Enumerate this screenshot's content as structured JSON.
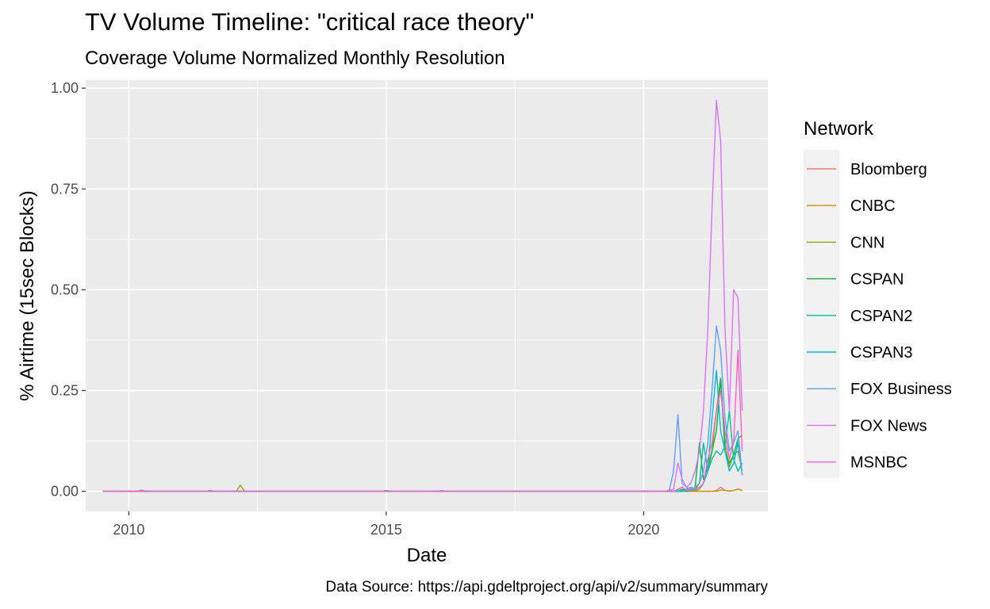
{
  "chart_data": {
    "type": "line",
    "title": "TV Volume Timeline: \"critical race theory\"",
    "subtitle": "Coverage Volume Normalized Monthly Resolution",
    "xlabel": "Date",
    "ylabel": "% Airtime (15sec Blocks)",
    "caption": "Data Source: https://api.gdeltproject.org/api/v2/summary/summary",
    "xlim": [
      "2009-03-01",
      "2022-06-01"
    ],
    "ylim": [
      -0.05,
      1.02
    ],
    "x_ticks": [
      "2010",
      "2015",
      "2020"
    ],
    "y_ticks": [
      "0.00",
      "0.25",
      "0.50",
      "0.75",
      "1.00"
    ],
    "grid": true,
    "legend_title": "Network",
    "legend_position": "right",
    "series": [
      {
        "name": "Bloomberg",
        "color": "#F8766D",
        "points": [
          [
            "2009-07-01",
            0
          ],
          [
            "2021-05-01",
            0
          ],
          [
            "2021-06-01",
            0.002
          ],
          [
            "2021-07-01",
            0.01
          ],
          [
            "2021-08-01",
            0.003
          ],
          [
            "2021-09-01",
            0.0
          ],
          [
            "2021-10-01",
            0.002
          ],
          [
            "2021-11-01",
            0.005
          ],
          [
            "2021-12-01",
            0.003
          ]
        ]
      },
      {
        "name": "CNBC",
        "color": "#D39200",
        "points": [
          [
            "2009-07-01",
            0
          ],
          [
            "2021-06-01",
            0
          ],
          [
            "2021-07-01",
            0.003
          ],
          [
            "2021-08-01",
            0.002
          ],
          [
            "2021-09-01",
            0.001
          ],
          [
            "2021-10-01",
            0.002
          ],
          [
            "2021-11-01",
            0.006
          ],
          [
            "2021-12-01",
            0.002
          ]
        ]
      },
      {
        "name": "CNN",
        "color": "#93AA00",
        "points": [
          [
            "2009-07-01",
            0
          ],
          [
            "2012-02-01",
            0
          ],
          [
            "2012-03-01",
            0.015
          ],
          [
            "2012-04-01",
            0
          ],
          [
            "2020-08-01",
            0
          ],
          [
            "2020-09-01",
            0.004
          ],
          [
            "2020-10-01",
            0.01
          ],
          [
            "2020-11-01",
            0.003
          ],
          [
            "2021-01-01",
            0.002
          ],
          [
            "2021-02-01",
            0.005
          ],
          [
            "2021-03-01",
            0.02
          ],
          [
            "2021-04-01",
            0.05
          ],
          [
            "2021-05-01",
            0.1
          ],
          [
            "2021-06-01",
            0.2
          ],
          [
            "2021-07-01",
            0.28
          ],
          [
            "2021-08-01",
            0.12
          ],
          [
            "2021-09-01",
            0.06
          ],
          [
            "2021-10-01",
            0.09
          ],
          [
            "2021-11-01",
            0.1
          ],
          [
            "2021-12-01",
            0.05
          ]
        ]
      },
      {
        "name": "CSPAN",
        "color": "#00BA38",
        "points": [
          [
            "2009-07-01",
            0
          ],
          [
            "2020-09-01",
            0
          ],
          [
            "2020-10-01",
            0.005
          ],
          [
            "2020-11-01",
            0.0
          ],
          [
            "2021-01-01",
            0.01
          ],
          [
            "2021-02-01",
            0.12
          ],
          [
            "2021-03-01",
            0.03
          ],
          [
            "2021-04-01",
            0.06
          ],
          [
            "2021-05-01",
            0.1
          ],
          [
            "2021-06-01",
            0.15
          ],
          [
            "2021-07-01",
            0.28
          ],
          [
            "2021-08-01",
            0.1
          ],
          [
            "2021-09-01",
            0.07
          ],
          [
            "2021-10-01",
            0.09
          ],
          [
            "2021-11-01",
            0.13
          ],
          [
            "2021-12-01",
            0.14
          ]
        ]
      },
      {
        "name": "CSPAN2",
        "color": "#00C19F",
        "points": [
          [
            "2009-07-01",
            0
          ],
          [
            "2011-07-01",
            0
          ],
          [
            "2011-08-01",
            0.002
          ],
          [
            "2011-09-01",
            0
          ],
          [
            "2020-09-01",
            0
          ],
          [
            "2020-10-01",
            0.003
          ],
          [
            "2020-11-01",
            0.005
          ],
          [
            "2020-12-01",
            0.01
          ],
          [
            "2021-01-01",
            0.005
          ],
          [
            "2021-02-01",
            0.02
          ],
          [
            "2021-03-01",
            0.12
          ],
          [
            "2021-04-01",
            0.05
          ],
          [
            "2021-05-01",
            0.08
          ],
          [
            "2021-06-01",
            0.1
          ],
          [
            "2021-07-01",
            0.09
          ],
          [
            "2021-08-01",
            0.11
          ],
          [
            "2021-09-01",
            0.2
          ],
          [
            "2021-10-01",
            0.08
          ],
          [
            "2021-11-01",
            0.05
          ],
          [
            "2021-12-01",
            0.07
          ]
        ]
      },
      {
        "name": "CSPAN3",
        "color": "#00B9E3",
        "points": [
          [
            "2009-07-01",
            0
          ],
          [
            "2014-12-01",
            0
          ],
          [
            "2015-01-01",
            0.002
          ],
          [
            "2015-02-01",
            0
          ],
          [
            "2020-10-01",
            0
          ],
          [
            "2020-11-01",
            0.002
          ],
          [
            "2021-01-01",
            0.004
          ],
          [
            "2021-02-01",
            0.01
          ],
          [
            "2021-03-01",
            0.02
          ],
          [
            "2021-04-01",
            0.05
          ],
          [
            "2021-05-01",
            0.18
          ],
          [
            "2021-06-01",
            0.3
          ],
          [
            "2021-07-01",
            0.15
          ],
          [
            "2021-08-01",
            0.1
          ],
          [
            "2021-09-01",
            0.05
          ],
          [
            "2021-10-01",
            0.07
          ],
          [
            "2021-11-01",
            0.12
          ],
          [
            "2021-12-01",
            0.04
          ]
        ]
      },
      {
        "name": "FOX Business",
        "color": "#619CFF",
        "points": [
          [
            "2009-07-01",
            0
          ],
          [
            "2016-01-01",
            0
          ],
          [
            "2016-02-01",
            0.002
          ],
          [
            "2016-03-01",
            0
          ],
          [
            "2020-06-01",
            0
          ],
          [
            "2020-07-01",
            0.002
          ],
          [
            "2020-08-01",
            0.05
          ],
          [
            "2020-09-01",
            0.19
          ],
          [
            "2020-10-01",
            0.02
          ],
          [
            "2020-11-01",
            0.01
          ],
          [
            "2020-12-01",
            0.005
          ],
          [
            "2021-01-01",
            0.01
          ],
          [
            "2021-02-01",
            0.02
          ],
          [
            "2021-03-01",
            0.05
          ],
          [
            "2021-04-01",
            0.12
          ],
          [
            "2021-05-01",
            0.25
          ],
          [
            "2021-06-01",
            0.41
          ],
          [
            "2021-07-01",
            0.35
          ],
          [
            "2021-08-01",
            0.18
          ],
          [
            "2021-09-01",
            0.1
          ],
          [
            "2021-10-01",
            0.12
          ],
          [
            "2021-11-01",
            0.15
          ],
          [
            "2021-12-01",
            0.04
          ]
        ]
      },
      {
        "name": "FOX News",
        "color": "#DB72FB",
        "points": [
          [
            "2009-07-01",
            0
          ],
          [
            "2020-06-01",
            0
          ],
          [
            "2020-07-01",
            0.003
          ],
          [
            "2020-08-01",
            0.005
          ],
          [
            "2020-09-01",
            0.07
          ],
          [
            "2020-10-01",
            0.03
          ],
          [
            "2020-11-01",
            0.01
          ],
          [
            "2020-12-01",
            0.02
          ],
          [
            "2021-01-01",
            0.05
          ],
          [
            "2021-02-01",
            0.1
          ],
          [
            "2021-03-01",
            0.2
          ],
          [
            "2021-04-01",
            0.4
          ],
          [
            "2021-05-01",
            0.7
          ],
          [
            "2021-06-01",
            0.97
          ],
          [
            "2021-07-01",
            0.87
          ],
          [
            "2021-08-01",
            0.4
          ],
          [
            "2021-09-01",
            0.2
          ],
          [
            "2021-10-01",
            0.5
          ],
          [
            "2021-11-01",
            0.48
          ],
          [
            "2021-12-01",
            0.2
          ]
        ]
      },
      {
        "name": "MSNBC",
        "color": "#FF61C3",
        "points": [
          [
            "2009-07-01",
            0
          ],
          [
            "2010-03-01",
            0
          ],
          [
            "2010-04-01",
            0.003
          ],
          [
            "2010-05-01",
            0
          ],
          [
            "2020-08-01",
            0
          ],
          [
            "2020-09-01",
            0.005
          ],
          [
            "2020-10-01",
            0.01
          ],
          [
            "2020-11-01",
            0.003
          ],
          [
            "2021-01-01",
            0.005
          ],
          [
            "2021-02-01",
            0.01
          ],
          [
            "2021-03-01",
            0.02
          ],
          [
            "2021-04-01",
            0.08
          ],
          [
            "2021-05-01",
            0.12
          ],
          [
            "2021-06-01",
            0.2
          ],
          [
            "2021-07-01",
            0.25
          ],
          [
            "2021-08-01",
            0.15
          ],
          [
            "2021-09-01",
            0.08
          ],
          [
            "2021-10-01",
            0.12
          ],
          [
            "2021-11-01",
            0.35
          ],
          [
            "2021-12-01",
            0.1
          ]
        ]
      }
    ]
  }
}
